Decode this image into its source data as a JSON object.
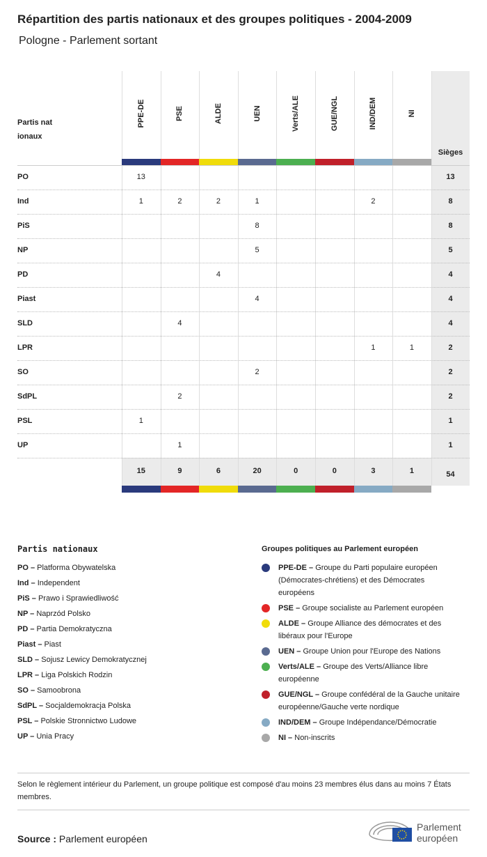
{
  "header": {
    "title": "Répartition des partis nationaux et des groupes politiques - 2004-2009",
    "subtitle": "Pologne - Parlement sortant"
  },
  "table": {
    "row_header": "Partis nationaux",
    "total_header": "Sièges",
    "columns": [
      {
        "label": "PPE-DE",
        "color": "#2a3a7c"
      },
      {
        "label": "PSE",
        "color": "#e32626"
      },
      {
        "label": "ALDE",
        "color": "#f0dc0a"
      },
      {
        "label": "UEN",
        "color": "#5a6a90"
      },
      {
        "label": "Verts/ALE",
        "color": "#4caf50"
      },
      {
        "label": "GUE/NGL",
        "color": "#c0202a"
      },
      {
        "label": "IND/DEM",
        "color": "#86aac4"
      },
      {
        "label": "NI",
        "color": "#a8a8a8"
      }
    ],
    "rows": [
      {
        "party": "PO",
        "values": [
          13,
          null,
          null,
          null,
          null,
          null,
          null,
          null
        ],
        "total": 13
      },
      {
        "party": "Ind",
        "values": [
          1,
          2,
          2,
          1,
          null,
          null,
          2,
          null
        ],
        "total": 8
      },
      {
        "party": "PiS",
        "values": [
          null,
          null,
          null,
          8,
          null,
          null,
          null,
          null
        ],
        "total": 8
      },
      {
        "party": "NP",
        "values": [
          null,
          null,
          null,
          5,
          null,
          null,
          null,
          null
        ],
        "total": 5
      },
      {
        "party": "PD",
        "values": [
          null,
          null,
          4,
          null,
          null,
          null,
          null,
          null
        ],
        "total": 4
      },
      {
        "party": "Piast",
        "values": [
          null,
          null,
          null,
          4,
          null,
          null,
          null,
          null
        ],
        "total": 4
      },
      {
        "party": "SLD",
        "values": [
          null,
          4,
          null,
          null,
          null,
          null,
          null,
          null
        ],
        "total": 4
      },
      {
        "party": "LPR",
        "values": [
          null,
          null,
          null,
          null,
          null,
          null,
          1,
          1
        ],
        "total": 2
      },
      {
        "party": "SO",
        "values": [
          null,
          null,
          null,
          2,
          null,
          null,
          null,
          null
        ],
        "total": 2
      },
      {
        "party": "SdPL",
        "values": [
          null,
          2,
          null,
          null,
          null,
          null,
          null,
          null
        ],
        "total": 2
      },
      {
        "party": "PSL",
        "values": [
          1,
          null,
          null,
          null,
          null,
          null,
          null,
          null
        ],
        "total": 1
      },
      {
        "party": "UP",
        "values": [
          null,
          1,
          null,
          null,
          null,
          null,
          null,
          null
        ],
        "total": 1
      }
    ],
    "totals": {
      "values": [
        15,
        9,
        6,
        20,
        0,
        0,
        3,
        1
      ],
      "total": 54
    }
  },
  "legend": {
    "parties_title": "Partis nationaux",
    "parties": [
      {
        "abbr": "PO –",
        "name": "Platforma Obywatelska"
      },
      {
        "abbr": "Ind –",
        "name": "Independent"
      },
      {
        "abbr": "PiS –",
        "name": "Prawo i Sprawiedliwość"
      },
      {
        "abbr": "NP –",
        "name": "Naprzód Polsko"
      },
      {
        "abbr": "PD –",
        "name": "Partia Demokratyczna"
      },
      {
        "abbr": "Piast –",
        "name": "Piast"
      },
      {
        "abbr": "SLD –",
        "name": "Sojusz Lewicy Demokratycznej"
      },
      {
        "abbr": "LPR –",
        "name": "Liga Polskich Rodzin"
      },
      {
        "abbr": "SO –",
        "name": "Samoobrona"
      },
      {
        "abbr": "SdPL –",
        "name": "Socjaldemokracja Polska"
      },
      {
        "abbr": "PSL –",
        "name": "Polskie Stronnictwo Ludowe"
      },
      {
        "abbr": "UP –",
        "name": "Unia Pracy"
      }
    ],
    "groups_title": "Groupes politiques au Parlement européen",
    "groups": [
      {
        "abbr": "PPE-DE –",
        "name": "Groupe du Parti populaire européen (Démocrates-chrétiens) et des Démocrates européens"
      },
      {
        "abbr": "PSE –",
        "name": "Groupe socialiste au Parlement européen"
      },
      {
        "abbr": "ALDE –",
        "name": "Groupe Alliance des démocrates et des libéraux pour l'Europe"
      },
      {
        "abbr": "UEN –",
        "name": "Groupe Union pour l'Europe des Nations"
      },
      {
        "abbr": "Verts/ALE –",
        "name": "Groupe des Verts/Alliance libre européenne"
      },
      {
        "abbr": "GUE/NGL –",
        "name": "Groupe confédéral de la Gauche unitaire européenne/Gauche verte nordique"
      },
      {
        "abbr": "IND/DEM –",
        "name": "Groupe Indépendance/Démocratie"
      },
      {
        "abbr": "NI –",
        "name": "Non-inscrits"
      }
    ]
  },
  "note": "Selon le règlement intérieur du Parlement, un groupe politique est composé d'au moins 23 membres élus dans au moins 7 États membres.",
  "source": {
    "label": "Source :",
    "text": "Parlement européen"
  },
  "logo": [
    "Parlement",
    "européen"
  ]
}
